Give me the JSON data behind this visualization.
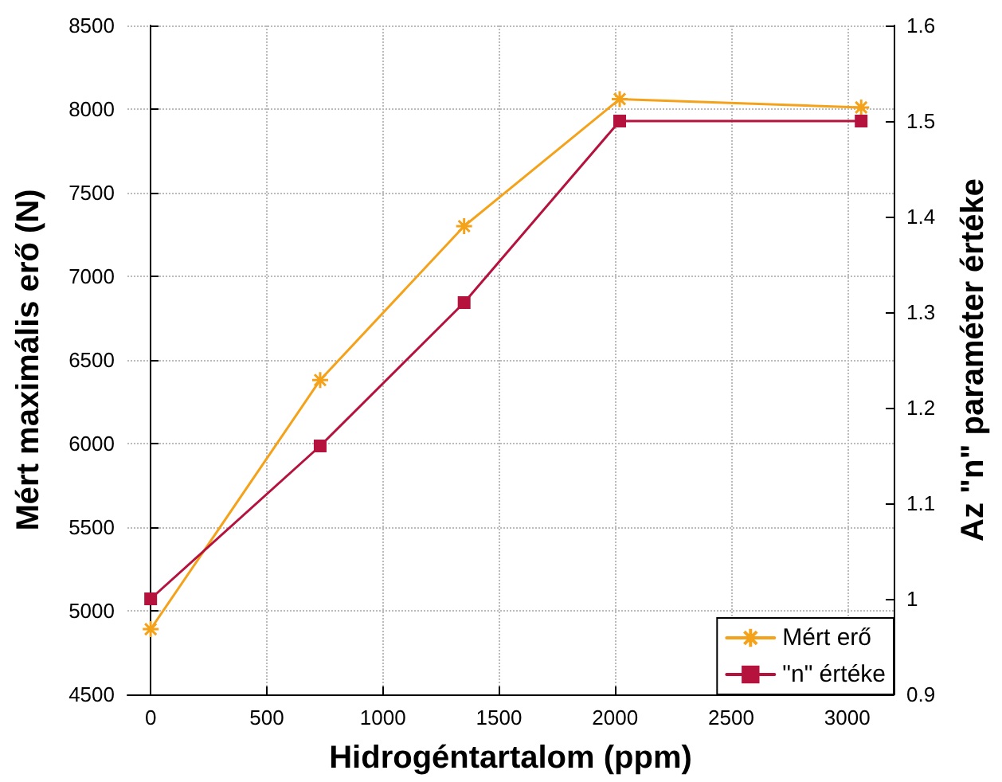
{
  "chart_data": {
    "type": "line",
    "xlabel": "Hidrogéntartalom (ppm)",
    "ylabel": "Mért maximális erő (N)",
    "y2label": "Az \"n\" paraméter értéke",
    "xlim": [
      -100,
      3200
    ],
    "xticks": [
      0,
      500,
      1000,
      1500,
      2000,
      2500,
      3000
    ],
    "ylim": [
      4500,
      8500
    ],
    "yticks": [
      4500,
      5000,
      5500,
      6000,
      6500,
      7000,
      7500,
      8000,
      8500
    ],
    "y2lim": [
      0.9,
      1.6
    ],
    "y2ticks": [
      0.9,
      1,
      1.1,
      1.2,
      1.3,
      1.4,
      1.5,
      1.6
    ],
    "grid": true,
    "legend": "bottom right",
    "line_style": "solid",
    "series": [
      {
        "name": "Mért erő",
        "color": "#f5a21b",
        "marker": "cross",
        "x": [
          0,
          730,
          1350,
          2020,
          3060
        ],
        "values": [
          4890,
          6380,
          7300,
          8060,
          8010
        ]
      },
      {
        "name": "\"n\" értéke",
        "color": "#b5123e",
        "marker": "square",
        "axis": "y2",
        "x": [
          0,
          730,
          1350,
          2020,
          3060
        ],
        "values": [
          1.0,
          1.16,
          1.31,
          1.5,
          1.5
        ]
      }
    ]
  }
}
